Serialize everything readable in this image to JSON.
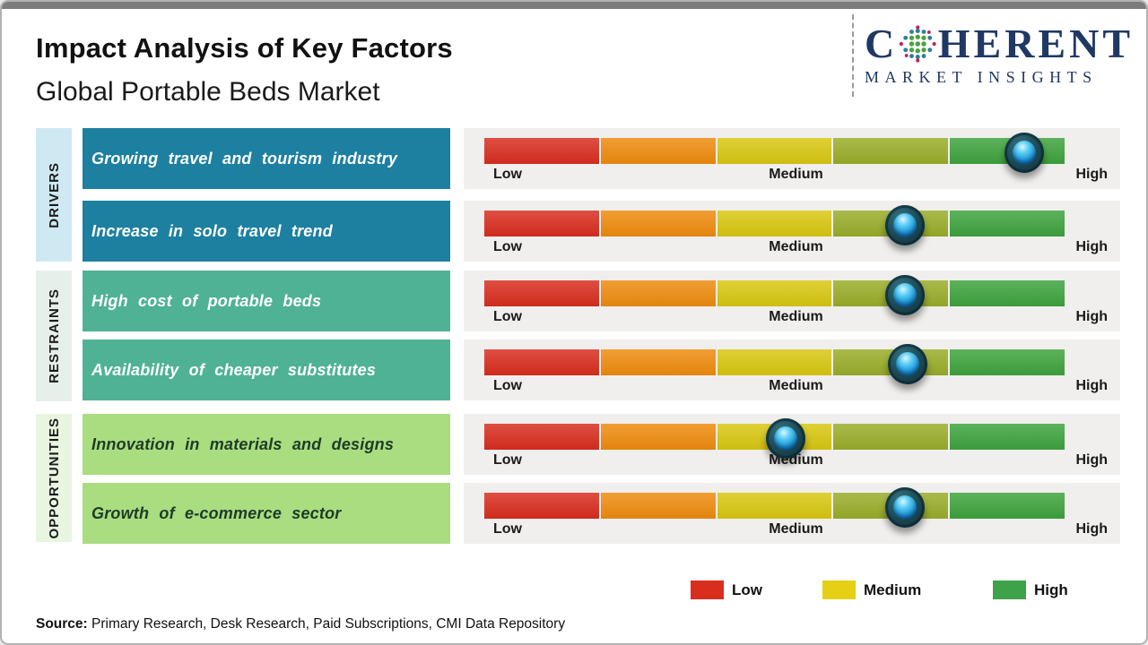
{
  "page": {
    "title": "Impact Analysis of Key Factors",
    "subtitle": "Global Portable Beds Market",
    "source_label": "Source:",
    "source_text": "Primary Research, Desk Research, Paid Subscriptions, CMI Data Repository"
  },
  "logo": {
    "word_start": "C",
    "word_end": "HERENT",
    "tagline": "MARKET INSIGHTS",
    "text_color": "#1f3864",
    "globe_dot_colors": {
      "inner": "#4aa23f",
      "outer": "#2d7f96",
      "accent": "#b72562"
    }
  },
  "scale": {
    "low": "Low",
    "medium": "Medium",
    "high": "High"
  },
  "bar_segments": [
    "#d92d1e",
    "#ef8b0e",
    "#d9c711",
    "#9aad29",
    "#3ea33d"
  ],
  "sections": [
    {
      "label": "DRIVERS",
      "box_color": "#1d80a0",
      "strip_color": "#cfe9f3",
      "factors": [
        {
          "label": "Growing travel and tourism industry",
          "marker_percent": 93
        },
        {
          "label": "Increase in solo travel trend",
          "marker_percent": 72.5
        }
      ]
    },
    {
      "label": "RESTRAINTS",
      "box_color": "#4fb294",
      "strip_color": "#e7efea",
      "factors": [
        {
          "label": "High cost of portable beds",
          "marker_percent": 72.5
        },
        {
          "label": "Availability of cheaper substitutes",
          "marker_percent": 73
        }
      ]
    },
    {
      "label": "OPPORTUNITIES",
      "box_color": "#a9dd80",
      "strip_color": "#e9f5e0",
      "factors": [
        {
          "label": "Innovation in materials and designs",
          "marker_percent": 52
        },
        {
          "label": "Growth of e-commerce sector",
          "marker_percent": 72.5
        }
      ]
    }
  ],
  "legend": [
    {
      "label": "Low",
      "color": "#d92d1e"
    },
    {
      "label": "Medium",
      "color": "#e5d016"
    },
    {
      "label": "High",
      "color": "#3ea24a"
    }
  ],
  "chart_data": {
    "type": "bar",
    "title": "Impact Analysis of Key Factors",
    "subtitle": "Global Portable Beds Market",
    "scale_labels": [
      "Low",
      "Medium",
      "High"
    ],
    "categories": [
      "Growing travel and tourism industry",
      "Increase in solo travel trend",
      "High cost of portable beds",
      "Availability of cheaper substitutes",
      "Innovation in materials and designs",
      "Growth of e-commerce sector"
    ],
    "groups": [
      "Drivers",
      "Drivers",
      "Restraints",
      "Restraints",
      "Opportunities",
      "Opportunities"
    ],
    "impact_percent_of_scale": [
      93,
      72.5,
      72.5,
      73,
      52,
      72.5
    ],
    "impact_level": [
      "High",
      "Medium-High",
      "Medium-High",
      "Medium-High",
      "Medium",
      "Medium-High"
    ],
    "segment_colors": [
      "#d92d1e",
      "#ef8b0e",
      "#d9c711",
      "#9aad29",
      "#3ea33d"
    ],
    "legend_entries": [
      "Low",
      "Medium",
      "High"
    ],
    "legend_position": "bottom"
  }
}
